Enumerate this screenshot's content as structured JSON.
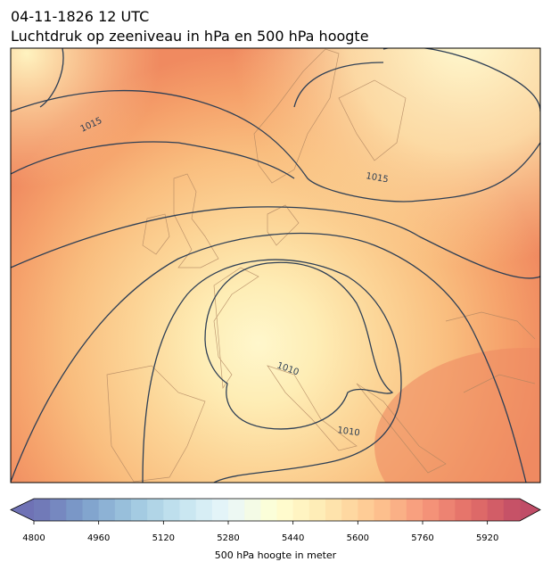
{
  "header": {
    "title": "04-11-1826 12 UTC",
    "subtitle": "Luchtdruk op zeeniveau in hPa en 500 hPa hoogte"
  },
  "map": {
    "contour_labels": [
      "1015",
      "1015",
      "1010",
      "1010"
    ]
  },
  "colorbar": {
    "label": "500 hPa hoogte in meter",
    "vlim": [
      4800,
      6000
    ],
    "ticks": [
      4800,
      4960,
      5120,
      5280,
      5440,
      5600,
      5760,
      5920
    ]
  }
}
